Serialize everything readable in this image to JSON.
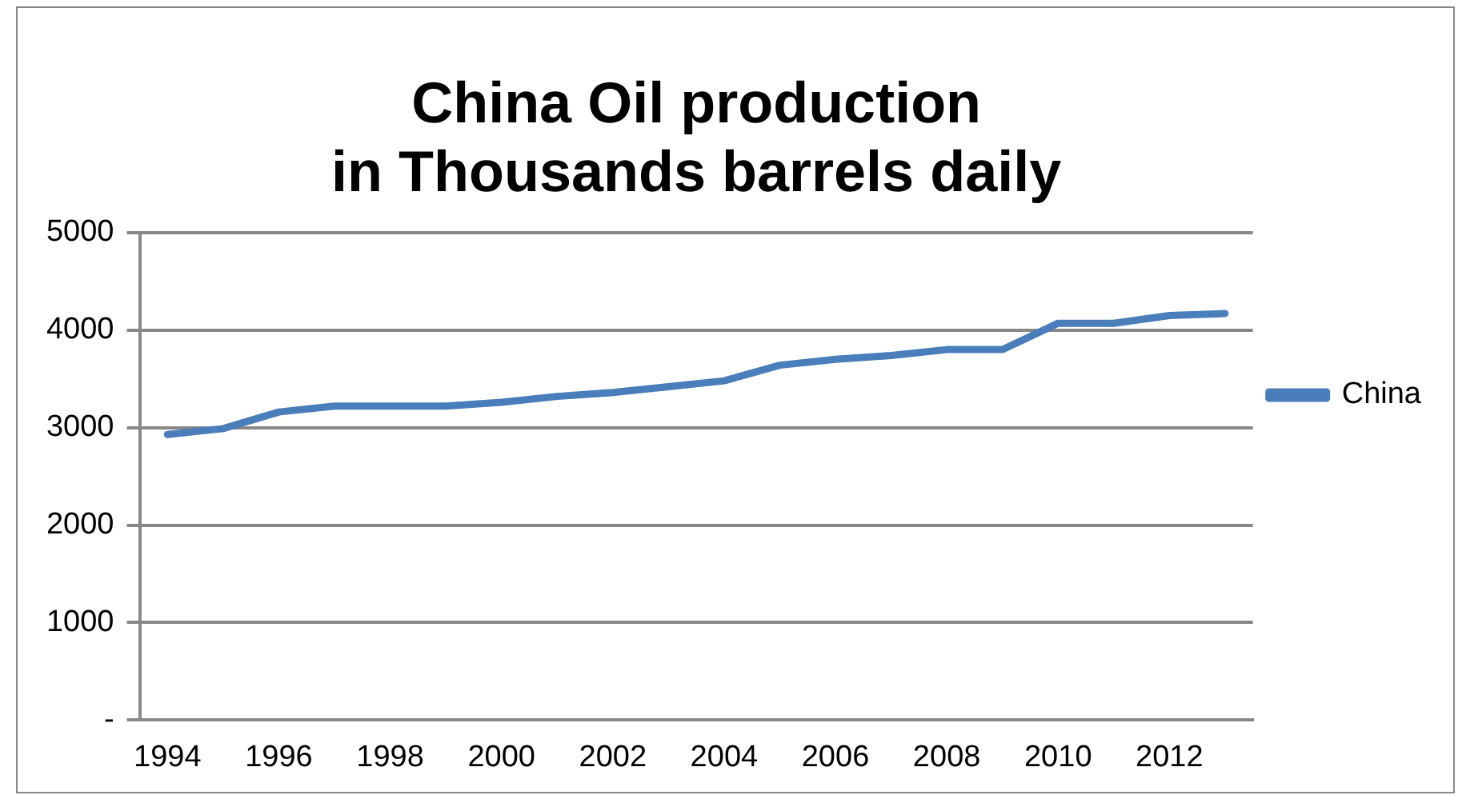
{
  "chart_data": {
    "type": "line",
    "title": [
      "China Oil production",
      "in Thousands barrels daily"
    ],
    "categories": [
      "1994",
      null,
      "1996",
      null,
      "1998",
      null,
      "2000",
      null,
      "2002",
      null,
      "2004",
      null,
      "2006",
      null,
      "2008",
      null,
      "2010",
      null,
      "2012",
      null
    ],
    "series": [
      {
        "name": "China",
        "color": "#4a7ebb",
        "values": [
          2930,
          2990,
          3160,
          3220,
          3220,
          3220,
          3260,
          3320,
          3360,
          3420,
          3480,
          3640,
          3700,
          3740,
          3800,
          3800,
          4070,
          4070,
          4150,
          4170
        ]
      }
    ],
    "ylim": [
      0,
      5000
    ],
    "yticks": [
      {
        "value": 0,
        "label": "-"
      },
      1000,
      2000,
      3000,
      4000,
      5000
    ],
    "grid": "y",
    "legend": "right",
    "marker": "none",
    "line_style": "solid"
  }
}
